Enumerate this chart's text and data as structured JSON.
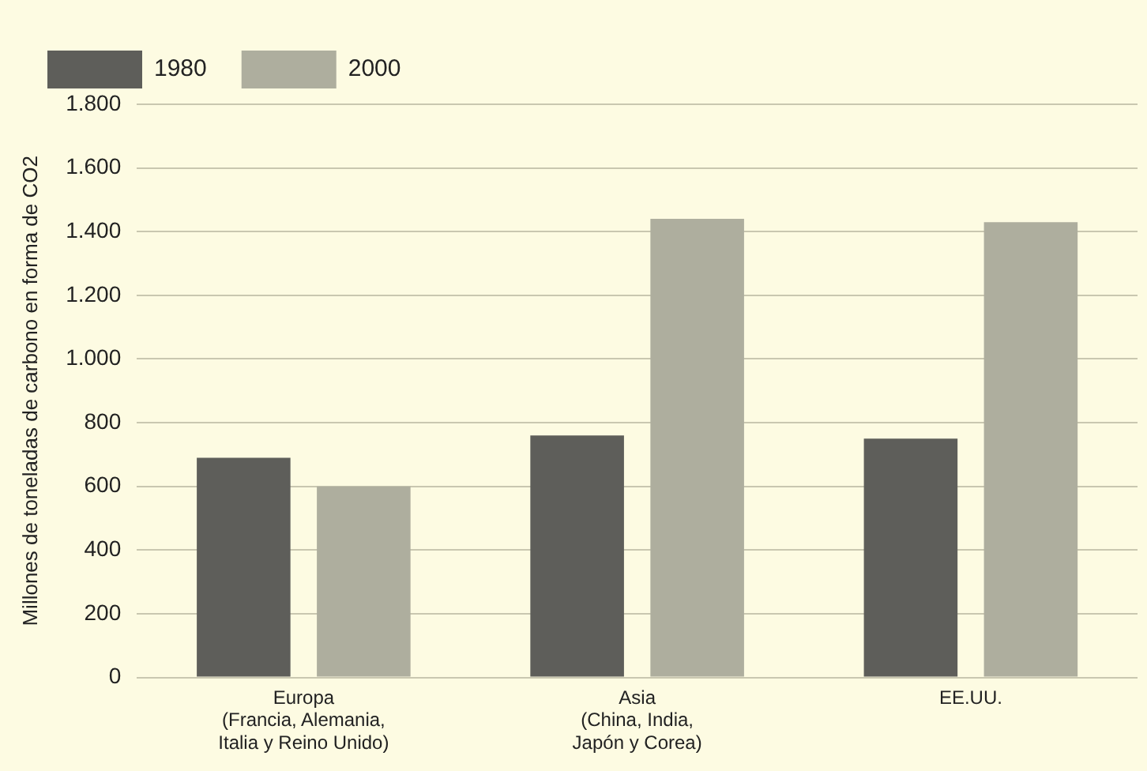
{
  "chart_data": {
    "type": "bar",
    "ylabel": "Millones de toneladas de carbono en forma de CO2",
    "categories": [
      "Europa\n(Francia, Alemania,\nItalia y Reino Unido)",
      "Asia\n(China, India,\nJapón y Corea)",
      "EE.UU."
    ],
    "series": [
      {
        "name": "1980",
        "color": "#5e5e5a",
        "values": [
          690,
          760,
          750
        ]
      },
      {
        "name": "2000",
        "color": "#aeae9e",
        "values": [
          600,
          1440,
          1430
        ]
      }
    ],
    "ylim": [
      0,
      1800
    ],
    "yticks": [
      0,
      200,
      400,
      600,
      800,
      {
        "value": 1000,
        "label": "1.000"
      },
      {
        "value": 1200,
        "label": "1.200"
      },
      {
        "value": 1400,
        "label": "1.400"
      },
      {
        "value": 1600,
        "label": "1.600"
      },
      {
        "value": 1800,
        "label": "1.800"
      }
    ],
    "grid": "y",
    "legend": "top left"
  }
}
